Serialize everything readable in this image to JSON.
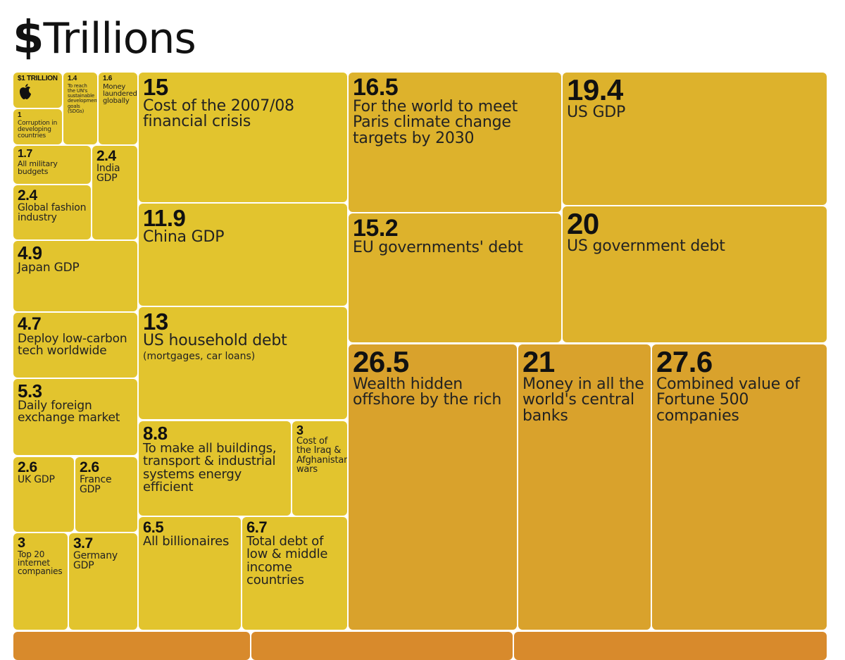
{
  "title": "$Trillions",
  "title_parts": {
    "dollar": "$",
    "word": "Trillions"
  },
  "colors": {
    "yellow": "#e2c42e",
    "gold": "#ddb22c",
    "orange": "#d9a22c",
    "deep_orange": "#d88a2c"
  },
  "chart_data": {
    "type": "treemap",
    "unit": "$ trillions",
    "title": "$Trillions",
    "items": [
      {
        "value": "$1 TRILLION",
        "label": "",
        "icon": "apple-logo-icon"
      },
      {
        "value": "1.4",
        "label": "To reach the UN's sustainable development goals (SDGs)"
      },
      {
        "value": "1.6",
        "label": "Money laundered globally"
      },
      {
        "value": "1",
        "label": "Corruption in developing countries"
      },
      {
        "value": "1.7",
        "label": "All military budgets"
      },
      {
        "value": "2.4",
        "label": "India GDP"
      },
      {
        "value": "2.4",
        "label": "Global fashion industry"
      },
      {
        "value": "4.9",
        "label": "Japan GDP"
      },
      {
        "value": "4.7",
        "label": "Deploy low-carbon tech worldwide"
      },
      {
        "value": "5.3",
        "label": "Daily foreign exchange market"
      },
      {
        "value": "2.6",
        "label": "UK GDP"
      },
      {
        "value": "2.6",
        "label": "France GDP"
      },
      {
        "value": "3",
        "label": "Top 20 internet companies"
      },
      {
        "value": "3.7",
        "label": "Germany GDP"
      },
      {
        "value": "15",
        "label": "Cost of the 2007/08 financial crisis"
      },
      {
        "value": "11.9",
        "label": "China GDP"
      },
      {
        "value": "13",
        "label": "US household debt",
        "sub": "(mortgages, car loans)"
      },
      {
        "value": "8.8",
        "label": "To make all buildings, transport & industrial systems energy efficient"
      },
      {
        "value": "3",
        "label": "Cost of the Iraq & Afghanistan wars"
      },
      {
        "value": "6.5",
        "label": "All billionaires"
      },
      {
        "value": "6.7",
        "label": "Total debt of low & middle income countries"
      },
      {
        "value": "16.5",
        "label": "For the world to meet Paris climate change targets by 2030"
      },
      {
        "value": "15.2",
        "label": "EU governments' debt"
      },
      {
        "value": "19.4",
        "label": "US GDP"
      },
      {
        "value": "20",
        "label": "US government debt"
      },
      {
        "value": "26.5",
        "label": "Wealth hidden offshore by the rich"
      },
      {
        "value": "21",
        "label": "Money in all the world's central banks"
      },
      {
        "value": "27.6",
        "label": "Combined value of Fortune 500 companies"
      },
      {
        "value": "",
        "label": ""
      },
      {
        "value": "",
        "label": ""
      },
      {
        "value": "",
        "label": ""
      }
    ]
  }
}
